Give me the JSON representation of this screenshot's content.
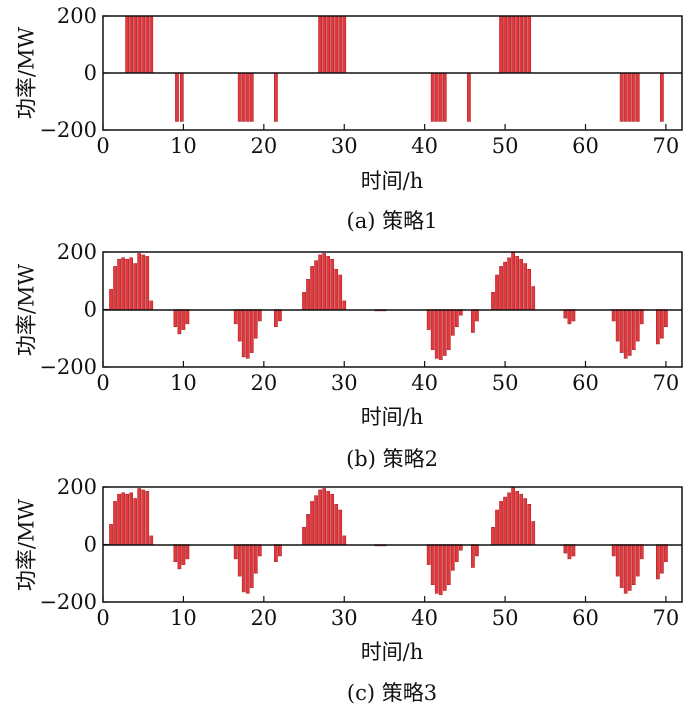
{
  "bar_color": "#e03a3e",
  "bar_edge_color": "#a81c20",
  "chart_data": [
    {
      "type": "bar",
      "caption": "(a) 策略1",
      "xlabel": "时间/h",
      "ylabel": "功率/MW",
      "xlim": [
        0,
        72
      ],
      "ylim": [
        -200,
        200
      ],
      "xticks": [
        0,
        10,
        20,
        30,
        40,
        50,
        60,
        70
      ],
      "yticks": [
        -200,
        0,
        200
      ],
      "x": [
        3,
        3.5,
        4,
        4.5,
        5,
        5.5,
        6,
        9.2,
        9.8,
        17,
        17.5,
        18,
        18.5,
        21.5,
        27,
        27.5,
        28,
        28.5,
        29,
        29.5,
        30,
        41,
        41.5,
        42,
        42.5,
        45.5,
        49.5,
        50,
        50.5,
        51,
        51.5,
        52,
        52.5,
        53,
        64.5,
        65,
        65.5,
        66,
        66.5,
        69.5
      ],
      "values": [
        200,
        200,
        200,
        200,
        200,
        200,
        200,
        -170,
        -170,
        -170,
        -170,
        -170,
        -170,
        -170,
        200,
        200,
        200,
        200,
        200,
        200,
        200,
        -170,
        -170,
        -170,
        -170,
        -170,
        200,
        200,
        200,
        200,
        200,
        200,
        200,
        200,
        -170,
        -170,
        -170,
        -170,
        -170,
        -170
      ]
    },
    {
      "type": "bar",
      "caption": "(b) 策略2",
      "xlabel": "时间/h",
      "ylabel": "功率/MW",
      "xlim": [
        0,
        72
      ],
      "ylim": [
        -200,
        200
      ],
      "xticks": [
        0,
        10,
        20,
        30,
        40,
        50,
        60,
        70
      ],
      "yticks": [
        -200,
        0,
        200
      ],
      "x": [
        1,
        1.5,
        2,
        2.5,
        3,
        3.5,
        4,
        4.5,
        5,
        5.5,
        6,
        9,
        9.5,
        10,
        10.5,
        16.5,
        17,
        17.5,
        18,
        18.5,
        19,
        19.5,
        21.5,
        22,
        25,
        25.5,
        26,
        26.5,
        27,
        27.5,
        28,
        28.5,
        29,
        29.5,
        30,
        34,
        34.5,
        35,
        40.5,
        41,
        41.5,
        42,
        42.5,
        43,
        43.5,
        44,
        44.5,
        46,
        46.5,
        48.5,
        49,
        49.5,
        50,
        50.5,
        51,
        51.5,
        52,
        52.5,
        53,
        53.5,
        57.5,
        58,
        58.5,
        63.5,
        64,
        64.5,
        65,
        65.5,
        66,
        66.5,
        67,
        69,
        69.5,
        70
      ],
      "values": [
        70,
        150,
        175,
        180,
        175,
        180,
        160,
        195,
        190,
        185,
        30,
        -60,
        -85,
        -70,
        -50,
        -50,
        -110,
        -165,
        -170,
        -150,
        -100,
        -40,
        -60,
        -40,
        60,
        105,
        150,
        170,
        190,
        195,
        185,
        175,
        140,
        120,
        30,
        -5,
        -5,
        -5,
        -70,
        -140,
        -170,
        -175,
        -160,
        -140,
        -90,
        -60,
        -20,
        -80,
        -40,
        60,
        120,
        150,
        165,
        180,
        200,
        185,
        175,
        160,
        140,
        80,
        -30,
        -50,
        -40,
        -40,
        -110,
        -150,
        -170,
        -160,
        -140,
        -110,
        -50,
        -120,
        -100,
        -60
      ]
    },
    {
      "type": "bar",
      "caption": "(c) 策略3",
      "xlabel": "时间/h",
      "ylabel": "功率/MW",
      "xlim": [
        0,
        72
      ],
      "ylim": [
        -200,
        200
      ],
      "xticks": [
        0,
        10,
        20,
        30,
        40,
        50,
        60,
        70
      ],
      "yticks": [
        -200,
        0,
        200
      ],
      "x": [
        1,
        1.5,
        2,
        2.5,
        3,
        3.5,
        4,
        4.5,
        5,
        5.5,
        6,
        9,
        9.5,
        10,
        10.5,
        16.5,
        17,
        17.5,
        18,
        18.5,
        19,
        19.5,
        21.5,
        22,
        25,
        25.5,
        26,
        26.5,
        27,
        27.5,
        28,
        28.5,
        29,
        29.5,
        30,
        34,
        34.5,
        35,
        40.5,
        41,
        41.5,
        42,
        42.5,
        43,
        43.5,
        44,
        44.5,
        46,
        46.5,
        48.5,
        49,
        49.5,
        50,
        50.5,
        51,
        51.5,
        52,
        52.5,
        53,
        53.5,
        57.5,
        58,
        58.5,
        63.5,
        64,
        64.5,
        65,
        65.5,
        66,
        66.5,
        67,
        69,
        69.5,
        70
      ],
      "values": [
        70,
        150,
        175,
        180,
        175,
        180,
        160,
        195,
        190,
        185,
        30,
        -60,
        -85,
        -70,
        -50,
        -50,
        -110,
        -165,
        -170,
        -150,
        -100,
        -40,
        -60,
        -40,
        60,
        105,
        150,
        170,
        190,
        195,
        185,
        175,
        140,
        120,
        30,
        -5,
        -5,
        -5,
        -70,
        -140,
        -170,
        -175,
        -160,
        -140,
        -90,
        -60,
        -20,
        -80,
        -40,
        60,
        120,
        150,
        165,
        180,
        200,
        185,
        175,
        160,
        140,
        80,
        -30,
        -50,
        -40,
        -40,
        -110,
        -150,
        -170,
        -160,
        -140,
        -110,
        -50,
        -120,
        -100,
        -60
      ]
    }
  ]
}
